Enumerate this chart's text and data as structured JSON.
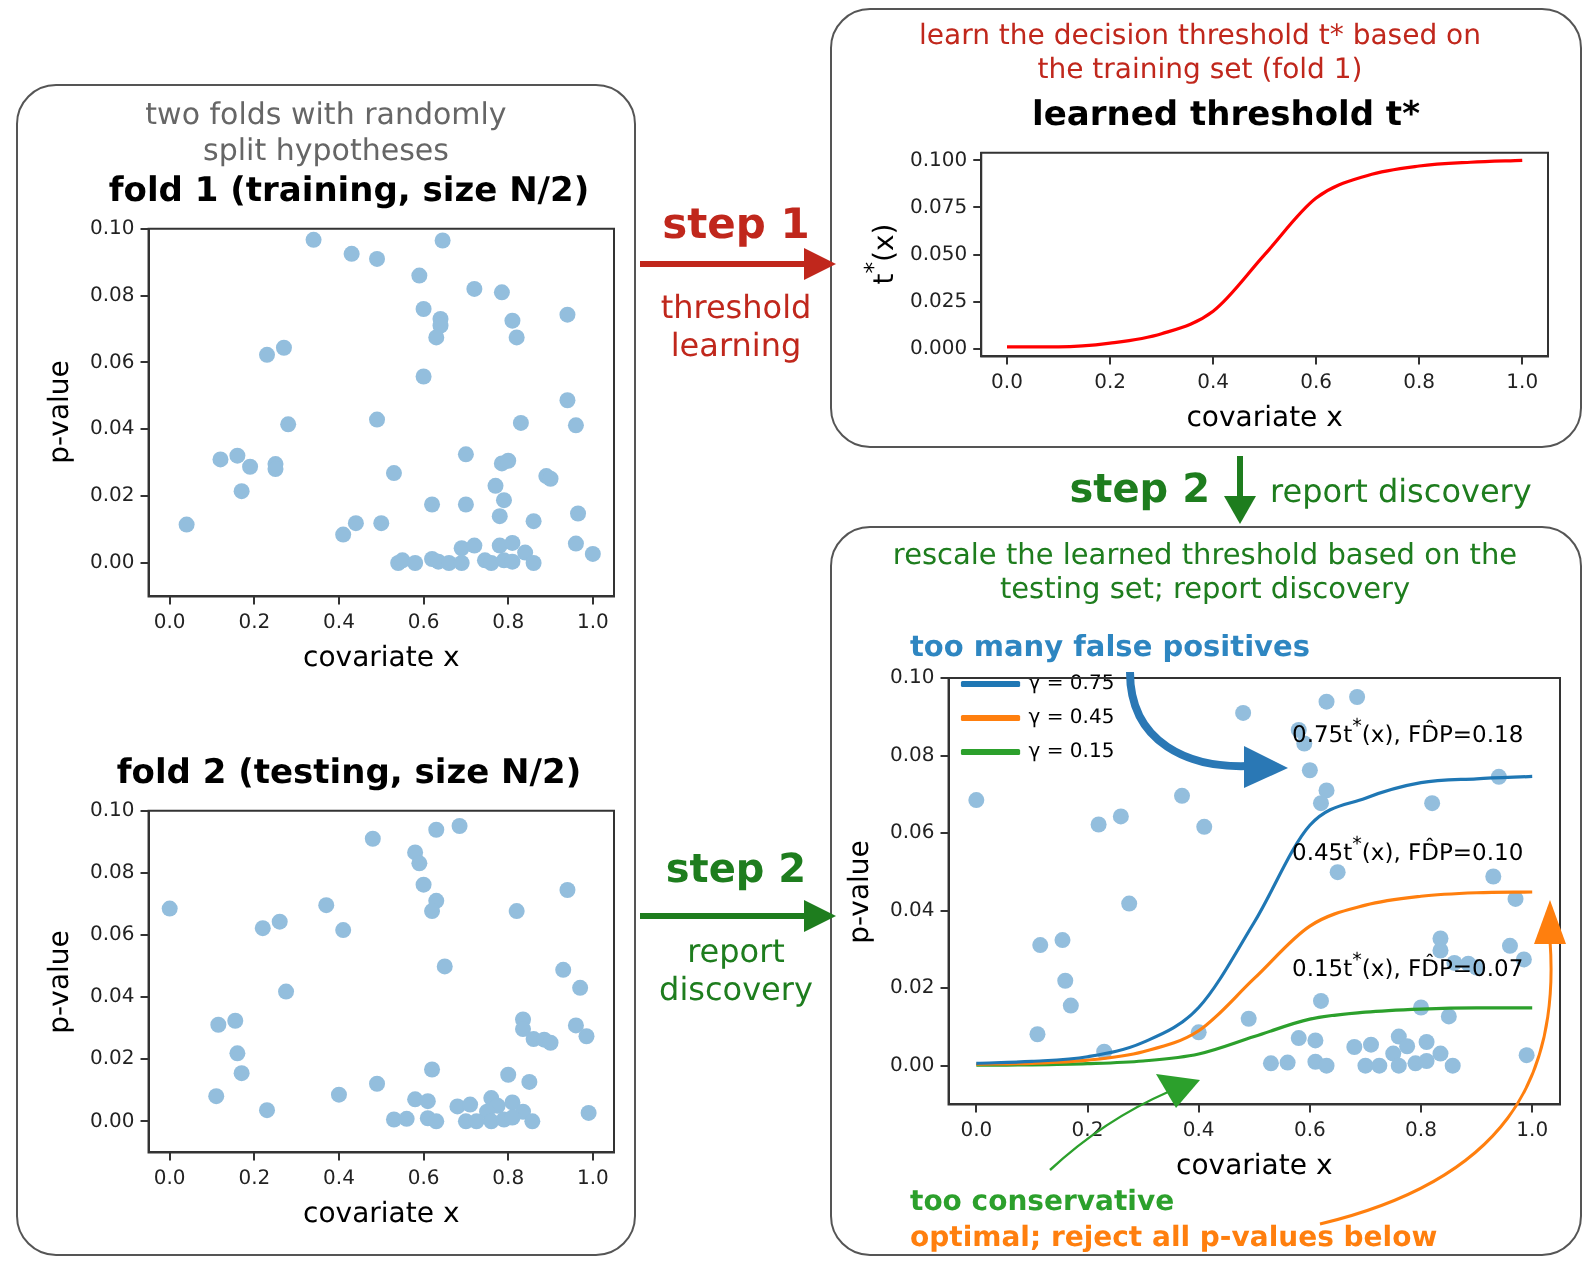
{
  "chart_data": [
    {
      "type": "scatter",
      "subtitle": "two folds with randomly split hypotheses",
      "title": "fold 1 (training, size N/2)",
      "xlabel": "covariate x",
      "ylabel": "p-value",
      "color": "#93bedd",
      "marker": "circle",
      "x": [
        0.34,
        0.43,
        0.49,
        0.59,
        0.645,
        0.72,
        0.785,
        0.6,
        0.64,
        0.64,
        0.63,
        0.81,
        0.82,
        0.94,
        0.23,
        0.27,
        0.6,
        0.49,
        0.28,
        0.94,
        0.96,
        0.83,
        0.12,
        0.16,
        0.19,
        0.25,
        0.25,
        0.17,
        0.53,
        0.7,
        0.785,
        0.8,
        0.77,
        0.89,
        0.9,
        0.62,
        0.7,
        0.79,
        0.78,
        0.86,
        0.965,
        0.04,
        0.44,
        0.5,
        0.41,
        0.69,
        0.72,
        0.78,
        0.81,
        0.84,
        0.96,
        1.0,
        0.54,
        0.55,
        0.58,
        0.62,
        0.635,
        0.66,
        0.69,
        0.745,
        0.76,
        0.79,
        0.81,
        0.86
      ],
      "values": [
        0.0967,
        0.0925,
        0.091,
        0.086,
        0.0965,
        0.082,
        0.081,
        0.076,
        0.073,
        0.071,
        0.0675,
        0.0725,
        0.0675,
        0.0743,
        0.0623,
        0.0644,
        0.0558,
        0.0429,
        0.0415,
        0.0487,
        0.0412,
        0.0419,
        0.031,
        0.0321,
        0.0288,
        0.0296,
        0.0281,
        0.0215,
        0.0269,
        0.0325,
        0.0298,
        0.0306,
        0.0231,
        0.026,
        0.0252,
        0.0175,
        0.0175,
        0.0188,
        0.014,
        0.0125,
        0.0148,
        0.0115,
        0.0119,
        0.0119,
        0.0085,
        0.0044,
        0.0052,
        0.0052,
        0.006,
        0.0031,
        0.0058,
        0.0027,
        0,
        0.0008,
        0,
        0.0012,
        0.0004,
        0,
        0,
        0.0008,
        0,
        0.0008,
        0.0004,
        0
      ],
      "xlim": [
        -0.05,
        1.05
      ],
      "xticks": [
        {
          "value": 0,
          "label": "0.0"
        },
        {
          "value": 0.2,
          "label": "0.2"
        },
        {
          "value": 0.4,
          "label": "0.4"
        },
        {
          "value": 0.6,
          "label": "0.6"
        },
        {
          "value": 0.8,
          "label": "0.8"
        },
        {
          "value": 1,
          "label": "1.0"
        }
      ],
      "ylim": [
        -0.01,
        0.1
      ],
      "yticks": [
        {
          "value": 0,
          "label": "0.00"
        },
        {
          "value": 0.02,
          "label": "0.02"
        },
        {
          "value": 0.04,
          "label": "0.04"
        },
        {
          "value": 0.06,
          "label": "0.06"
        },
        {
          "value": 0.08,
          "label": "0.08"
        },
        {
          "value": 0.1,
          "label": "0.10"
        }
      ]
    },
    {
      "type": "scatter",
      "title": "fold 2 (testing, size N/2)",
      "xlabel": "covariate x",
      "ylabel": "p-value",
      "color": "#93bedd",
      "marker": "circle",
      "x": [
        0.0,
        0.48,
        0.58,
        0.59,
        0.63,
        0.685,
        0.6,
        0.63,
        0.62,
        0.37,
        0.41,
        0.22,
        0.26,
        0.65,
        0.275,
        0.82,
        0.94,
        0.93,
        0.97,
        0.115,
        0.155,
        0.16,
        0.17,
        0.11,
        0.23,
        0.4,
        0.49,
        0.62,
        0.835,
        0.835,
        0.86,
        0.885,
        0.9,
        0.96,
        0.985,
        0.8,
        0.85,
        0.58,
        0.61,
        0.68,
        0.71,
        0.76,
        0.81,
        0.775,
        0.75,
        0.835,
        0.99,
        0.53,
        0.56,
        0.61,
        0.63,
        0.7,
        0.725,
        0.76,
        0.79,
        0.81,
        0.857
      ],
      "values": [
        0.0685,
        0.091,
        0.0866,
        0.0831,
        0.0939,
        0.0951,
        0.0762,
        0.071,
        0.0677,
        0.0696,
        0.0616,
        0.0622,
        0.0643,
        0.0499,
        0.0418,
        0.0677,
        0.0745,
        0.0488,
        0.043,
        0.0311,
        0.0324,
        0.0219,
        0.0155,
        0.0081,
        0.0036,
        0.0086,
        0.0121,
        0.0167,
        0.0328,
        0.0297,
        0.0265,
        0.0263,
        0.0253,
        0.0309,
        0.0274,
        0.015,
        0.0127,
        0.0071,
        0.0065,
        0.0048,
        0.0054,
        0.0075,
        0.0061,
        0.005,
        0.0031,
        0.0031,
        0.0027,
        0.0006,
        0.0008,
        0.001,
        0,
        0,
        0,
        0,
        0.0006,
        0.0012,
        0
      ],
      "xlim": [
        -0.05,
        1.05
      ],
      "xticks": [
        {
          "value": 0,
          "label": "0.0"
        },
        {
          "value": 0.2,
          "label": "0.2"
        },
        {
          "value": 0.4,
          "label": "0.4"
        },
        {
          "value": 0.6,
          "label": "0.6"
        },
        {
          "value": 0.8,
          "label": "0.8"
        },
        {
          "value": 1,
          "label": "1.0"
        }
      ],
      "ylim": [
        -0.01,
        0.1
      ],
      "yticks": [
        {
          "value": 0,
          "label": "0.00"
        },
        {
          "value": 0.02,
          "label": "0.02"
        },
        {
          "value": 0.04,
          "label": "0.04"
        },
        {
          "value": 0.06,
          "label": "0.06"
        },
        {
          "value": 0.08,
          "label": "0.08"
        },
        {
          "value": 0.1,
          "label": "0.10"
        }
      ]
    },
    {
      "type": "line",
      "subtitle": "learn the decision threshold t* based on the training set (fold 1)",
      "title": "learned threshold t*",
      "xlabel": "covariate x",
      "ylabel": "t$^{*}$(x)",
      "color": "#ff0000",
      "x": [
        0,
        0.1,
        0.2,
        0.3,
        0.4,
        0.5,
        0.6,
        0.7,
        0.8,
        0.9,
        1.0
      ],
      "values": [
        0.001,
        0.001,
        0.003,
        0.008,
        0.02,
        0.05,
        0.08,
        0.092,
        0.097,
        0.099,
        0.1
      ],
      "annotations": [
        "step 1",
        "threshold learning"
      ],
      "xlim": [
        -0.05,
        1.05
      ],
      "xticks": [
        {
          "value": 0,
          "label": "0.0"
        },
        {
          "value": 0.2,
          "label": "0.2"
        },
        {
          "value": 0.4,
          "label": "0.4"
        },
        {
          "value": 0.6,
          "label": "0.6"
        },
        {
          "value": 0.8,
          "label": "0.8"
        },
        {
          "value": 1,
          "label": "1.0"
        }
      ],
      "ylim": [
        -0.004,
        0.104
      ],
      "yticks": [
        {
          "value": 0,
          "label": "0.000"
        },
        {
          "value": 0.025,
          "label": "0.025"
        },
        {
          "value": 0.05,
          "label": "0.050"
        },
        {
          "value": 0.075,
          "label": "0.075"
        },
        {
          "value": 0.1,
          "label": "0.100"
        }
      ]
    },
    {
      "type": "scatter",
      "title": "rescale the learned threshold based on the testing set; report discovery",
      "xlabel": "covariate x",
      "ylabel": "p-value",
      "legend": "top left",
      "series": [
        {
          "type": "scatter",
          "color": "#93bedd",
          "marker": "circle",
          "x": [
            0.0,
            0.48,
            0.58,
            0.59,
            0.63,
            0.685,
            0.6,
            0.63,
            0.62,
            0.37,
            0.41,
            0.22,
            0.26,
            0.65,
            0.275,
            0.82,
            0.94,
            0.93,
            0.97,
            0.115,
            0.155,
            0.16,
            0.17,
            0.11,
            0.23,
            0.4,
            0.49,
            0.62,
            0.835,
            0.835,
            0.86,
            0.885,
            0.9,
            0.96,
            0.985,
            0.8,
            0.85,
            0.58,
            0.61,
            0.68,
            0.71,
            0.76,
            0.81,
            0.775,
            0.75,
            0.835,
            0.99,
            0.53,
            0.56,
            0.61,
            0.63,
            0.7,
            0.725,
            0.76,
            0.79,
            0.81,
            0.857
          ],
          "values": [
            0.0685,
            0.091,
            0.0866,
            0.0831,
            0.0939,
            0.0951,
            0.0762,
            0.071,
            0.0677,
            0.0696,
            0.0616,
            0.0622,
            0.0643,
            0.0499,
            0.0418,
            0.0677,
            0.0745,
            0.0488,
            0.043,
            0.0311,
            0.0324,
            0.0219,
            0.0155,
            0.0081,
            0.0036,
            0.0086,
            0.0121,
            0.0167,
            0.0328,
            0.0297,
            0.0265,
            0.0263,
            0.0253,
            0.0309,
            0.0274,
            0.015,
            0.0127,
            0.0071,
            0.0065,
            0.0048,
            0.0054,
            0.0075,
            0.0061,
            0.005,
            0.0031,
            0.0031,
            0.0027,
            0.0006,
            0.0008,
            0.001,
            0,
            0,
            0,
            0,
            0.0006,
            0.0012,
            0
          ]
        },
        {
          "type": "line",
          "name": "γ = 0.75",
          "color": "#1f77b4",
          "x": [
            0,
            0.1,
            0.2,
            0.3,
            0.4,
            0.5,
            0.6,
            0.7,
            0.8,
            0.9,
            1.0
          ],
          "values": [
            0.0006,
            0.0011,
            0.0023,
            0.006,
            0.015,
            0.037,
            0.062,
            0.069,
            0.073,
            0.074,
            0.0746
          ]
        },
        {
          "type": "line",
          "name": "γ = 0.45",
          "color": "#ff7f0e",
          "x": [
            0,
            0.1,
            0.2,
            0.3,
            0.4,
            0.5,
            0.6,
            0.7,
            0.8,
            0.9,
            1.0
          ],
          "values": [
            0.0004,
            0.0006,
            0.0014,
            0.0036,
            0.009,
            0.0225,
            0.036,
            0.0414,
            0.0437,
            0.0446,
            0.0448
          ]
        },
        {
          "type": "line",
          "name": "γ = 0.15",
          "color": "#2ca02c",
          "x": [
            0,
            0.1,
            0.2,
            0.3,
            0.4,
            0.5,
            0.6,
            0.7,
            0.8,
            0.9,
            1.0
          ],
          "values": [
            0.0001,
            0.0002,
            0.0005,
            0.0012,
            0.003,
            0.0075,
            0.012,
            0.0138,
            0.0146,
            0.0149,
            0.0149
          ]
        }
      ],
      "annotations": [
        "step 2",
        "report discovery",
        "step 2",
        "report discovery",
        "too many false positives",
        "too conservative",
        "optimal; reject all p-values below",
        "0.75t$^{*}$(x), FD̂P=0.18",
        "0.45t$^{*}$(x), FD̂P=0.10",
        "0.15t$^{*}$(x), FD̂P=0.07"
      ],
      "xlim": [
        -0.05,
        1.05
      ],
      "xticks": [
        {
          "value": 0,
          "label": "0.0"
        },
        {
          "value": 0.2,
          "label": "0.2"
        },
        {
          "value": 0.4,
          "label": "0.4"
        },
        {
          "value": 0.6,
          "label": "0.6"
        },
        {
          "value": 0.8,
          "label": "0.8"
        },
        {
          "value": 1,
          "label": "1.0"
        }
      ],
      "ylim": [
        -0.01,
        0.1
      ],
      "yticks": [
        {
          "value": 0,
          "label": "0.00"
        },
        {
          "value": 0.02,
          "label": "0.02"
        },
        {
          "value": 0.04,
          "label": "0.04"
        },
        {
          "value": 0.06,
          "label": "0.06"
        },
        {
          "value": 0.08,
          "label": "0.08"
        },
        {
          "value": 0.1,
          "label": "0.10"
        }
      ]
    }
  ]
}
